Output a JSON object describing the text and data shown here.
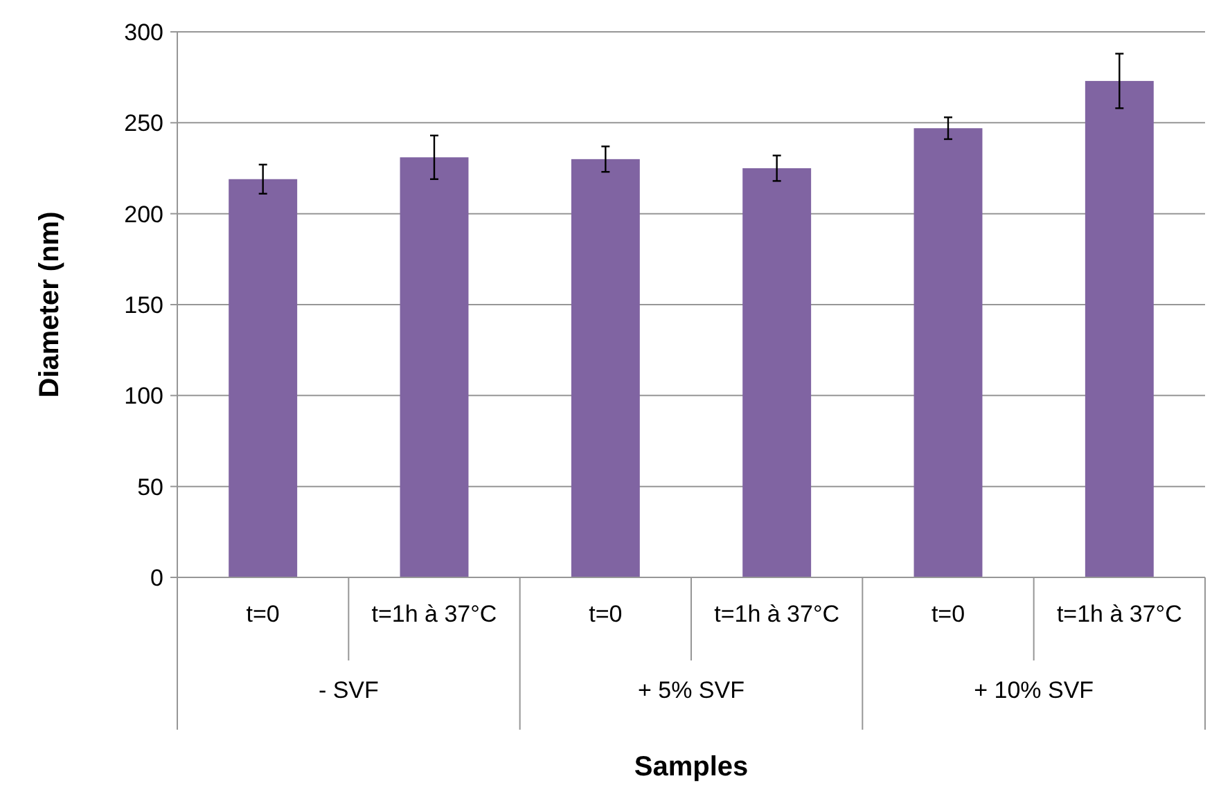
{
  "chart_data": {
    "type": "bar",
    "xlabel": "Samples",
    "ylabel": "Diameter  (nm)",
    "categories": [
      "t=0",
      "t=1h à 37°C",
      "t=0",
      "t=1h à 37°C",
      "t=0",
      "t=1h à 37°C"
    ],
    "values": [
      219,
      231,
      230,
      225,
      247,
      273
    ],
    "errors": [
      8,
      12,
      7,
      7,
      6,
      15
    ],
    "color": "#8064a2",
    "annotations": [
      "- SVF",
      "+ 5% SVF",
      "+ 10% SVF"
    ],
    "ylim": [
      0,
      300
    ],
    "yticks": [
      0,
      50,
      100,
      150,
      200,
      250,
      300
    ],
    "grid": "y"
  }
}
